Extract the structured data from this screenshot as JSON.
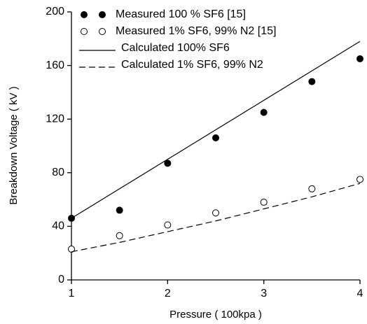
{
  "chart_data": {
    "type": "line",
    "x_label": "Pressure ( 100kpa )",
    "y_label": "Breakdown Voltage ( kV )",
    "x": [
      1,
      1.5,
      2,
      2.5,
      3,
      3.5,
      4
    ],
    "series": [
      {
        "name": "Measured 100 % SF6  [15]",
        "color": "#000000",
        "style": "filled-marker",
        "values": [
          46,
          52,
          87,
          106,
          125,
          148,
          165
        ]
      },
      {
        "name": "Measured 1% SF6, 99% N2  [15]",
        "color": "#000000",
        "style": "open-marker",
        "values": [
          23,
          33,
          41,
          50,
          58,
          68,
          75
        ]
      },
      {
        "name": "Calculated 100% SF6",
        "color": "#000000",
        "style": "solid",
        "values": [
          46,
          68,
          90,
          112,
          134,
          156,
          178
        ]
      },
      {
        "name": "Calculated 1% SF6, 99% N2",
        "color": "#000000",
        "style": "dashed",
        "values": [
          21,
          28,
          36,
          44,
          53,
          62,
          72
        ]
      }
    ],
    "xlim": [
      1,
      4
    ],
    "xticks": [
      1,
      2,
      3,
      4
    ],
    "ylim": [
      0,
      200
    ],
    "yticks": [
      0,
      40,
      80,
      120,
      160,
      200
    ],
    "grid": false,
    "legend": "upper left"
  }
}
